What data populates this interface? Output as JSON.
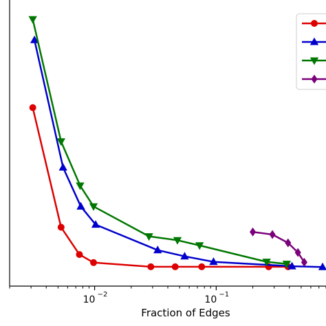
{
  "chart_data": {
    "type": "line",
    "xlabel": "Fraction of Edges",
    "ylabel": "",
    "xscale": "log",
    "xlim": [
      0.002,
      0.8
    ],
    "ylim": [
      0,
      1
    ],
    "x_tick_labels": [
      {
        "value": 0.01,
        "base": "10",
        "exp": "−2"
      },
      {
        "value": 0.1,
        "base": "10",
        "exp": "−1"
      }
    ],
    "legend_position": "top-right",
    "series": [
      {
        "color": "#dd0000",
        "marker": "circle",
        "x": [
          0.0031,
          0.0053,
          0.0075,
          0.0098,
          0.029,
          0.046,
          0.076,
          0.27,
          0.39
        ],
        "y": [
          0.66,
          0.2,
          0.095,
          0.064,
          0.048,
          0.048,
          0.048,
          0.048,
          0.048
        ]
      },
      {
        "color": "#0000cc",
        "marker": "triangle-up",
        "x": [
          0.0032,
          0.0055,
          0.0077,
          0.0102,
          0.033,
          0.055,
          0.095,
          0.42,
          0.75
        ],
        "y": [
          0.92,
          0.43,
          0.28,
          0.21,
          0.112,
          0.088,
          0.067,
          0.05,
          0.047
        ]
      },
      {
        "color": "#007700",
        "marker": "triangle-down",
        "x": [
          0.0031,
          0.0053,
          0.0076,
          0.0098,
          0.028,
          0.048,
          0.073,
          0.26,
          0.38
        ],
        "y": [
          1.0,
          0.53,
          0.36,
          0.28,
          0.165,
          0.15,
          0.13,
          0.067,
          0.059
        ]
      },
      {
        "color": "#7a007a",
        "marker": "diamond",
        "x": [
          0.2,
          0.29,
          0.39,
          0.47,
          0.53
        ],
        "y": [
          0.182,
          0.172,
          0.14,
          0.103,
          0.065
        ]
      }
    ]
  }
}
